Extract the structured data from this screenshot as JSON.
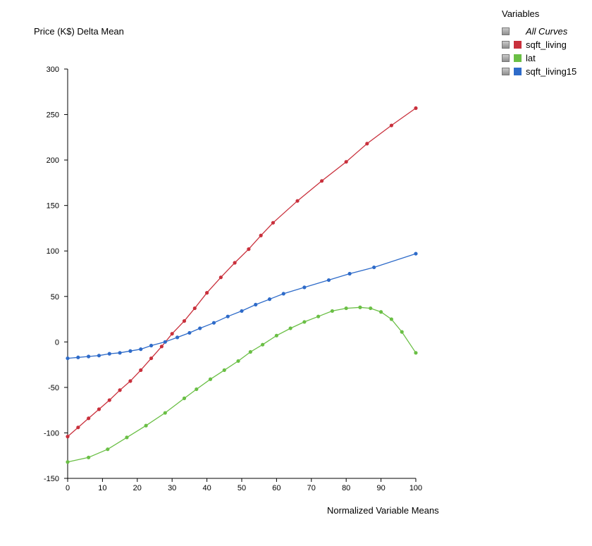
{
  "chart_data": {
    "type": "line",
    "title": "",
    "ylabel": "Price (K$) Delta Mean",
    "xlabel": "Normalized Variable Means",
    "xlim": [
      0,
      100
    ],
    "ylim": [
      -150,
      300
    ],
    "xticks": [
      0,
      10,
      20,
      30,
      40,
      50,
      60,
      70,
      80,
      90,
      100
    ],
    "yticks": [
      -150,
      -100,
      -50,
      0,
      50,
      100,
      150,
      200,
      250,
      300
    ],
    "grid": false,
    "legend_position": "top-right",
    "series": [
      {
        "name": "sqft_living",
        "color": "#c9303c",
        "x": [
          0,
          3,
          6,
          9,
          12,
          15,
          18,
          21,
          24,
          27,
          30,
          33.5,
          36.5,
          40,
          44,
          48,
          52,
          55.5,
          59,
          66,
          73,
          80,
          86,
          93,
          100
        ],
        "y": [
          -104,
          -94,
          -84,
          -74,
          -64,
          -53,
          -43,
          -31,
          -18,
          -5,
          9,
          23,
          37,
          54,
          71,
          87,
          102,
          117,
          131,
          155,
          177,
          198,
          218,
          238,
          257
        ]
      },
      {
        "name": "lat",
        "color": "#6abf45",
        "x": [
          0,
          6,
          11.5,
          17,
          22.5,
          28,
          33.5,
          37,
          41,
          45,
          49,
          52.5,
          56,
          60,
          64,
          68,
          72,
          76,
          80,
          84,
          87,
          90,
          93,
          96,
          100
        ],
        "y": [
          -132,
          -127,
          -118,
          -105,
          -92,
          -78,
          -62,
          -52,
          -41,
          -31,
          -21,
          -11,
          -3,
          7,
          15,
          22,
          28,
          34,
          37,
          38,
          37,
          33,
          25,
          11,
          -12
        ]
      },
      {
        "name": "sqft_living15",
        "color": "#2e6bc9",
        "x": [
          0,
          3,
          6,
          9,
          12,
          15,
          18,
          21,
          24,
          28,
          31.5,
          35,
          38,
          42,
          46,
          50,
          54,
          58,
          62,
          68,
          75,
          81,
          88,
          100
        ],
        "y": [
          -18,
          -17,
          -16,
          -15,
          -13,
          -12,
          -10,
          -8,
          -4,
          0,
          5,
          10,
          15,
          21,
          28,
          34,
          41,
          47,
          53,
          60,
          68,
          75,
          82,
          97
        ]
      }
    ]
  },
  "legend": {
    "title": "Variables",
    "all_curves_label": "All Curves",
    "items": [
      {
        "label": "sqft_living",
        "color": "#c9303c"
      },
      {
        "label": "lat",
        "color": "#6abf45"
      },
      {
        "label": "sqft_living15",
        "color": "#2e6bc9"
      }
    ]
  }
}
